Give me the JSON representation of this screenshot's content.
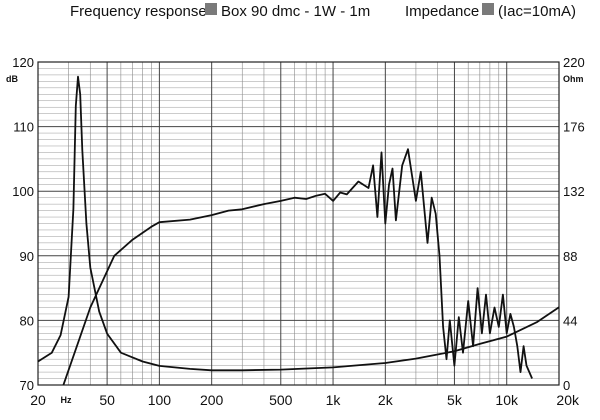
{
  "legend": {
    "fr_label": "Frequency response",
    "fr_series": "Box 90 dmc - 1W - 1m",
    "imp_label": "Impedance",
    "imp_series": "(Iac=10mA)",
    "swatch_color": "#7a7a7a"
  },
  "chart_data": {
    "type": "line",
    "x_scale": "log",
    "xlim": [
      20,
      20000
    ],
    "ylim": [
      70,
      120
    ],
    "y2lim": [
      0,
      220
    ],
    "grid": true,
    "x_ticks": [
      20,
      50,
      100,
      200,
      500,
      1000,
      2000,
      5000,
      10000,
      20000
    ],
    "x_tick_labels": [
      "20",
      "50",
      "100",
      "200",
      "500",
      "1k",
      "2k",
      "5k",
      "10k",
      "20k"
    ],
    "x_unit": "Hz",
    "y_ticks": [
      70,
      80,
      90,
      100,
      110,
      120
    ],
    "y_unit": "dB",
    "y2_ticks": [
      0,
      44,
      88,
      132,
      176,
      220
    ],
    "y2_unit": "Ohm",
    "series": [
      {
        "name": "Box 90 dmc - 1W - 1m",
        "axis": "left",
        "color": "#111111",
        "x": [
          28,
          40,
          55,
          70,
          90,
          100,
          150,
          200,
          250,
          300,
          400,
          500,
          600,
          700,
          800,
          900,
          1000,
          1100,
          1200,
          1400,
          1600,
          1700,
          1800,
          1900,
          2000,
          2100,
          2200,
          2300,
          2500,
          2700,
          3000,
          3200,
          3500,
          3700,
          3900,
          4100,
          4300,
          4500,
          4700,
          5000,
          5300,
          5600,
          6000,
          6400,
          6800,
          7200,
          7600,
          8000,
          8500,
          9000,
          9500,
          10000,
          10500,
          11000,
          11500,
          12000,
          12500,
          13000,
          14000
        ],
        "y": [
          70,
          82,
          90,
          92.5,
          94.5,
          95.2,
          95.6,
          96.3,
          97,
          97.2,
          98,
          98.5,
          99,
          98.8,
          99.3,
          99.6,
          98.5,
          99.8,
          99.5,
          101.5,
          100.5,
          104,
          96,
          106,
          95,
          101,
          103.5,
          95.5,
          104,
          106.5,
          98.5,
          103,
          92,
          99,
          96.5,
          90,
          79,
          74,
          80,
          73,
          80.5,
          75,
          83,
          76,
          85,
          78,
          84,
          78,
          82,
          79,
          84,
          78,
          81,
          79,
          76,
          72,
          76,
          73,
          71
        ]
      },
      {
        "name": "Impedance",
        "axis": "right",
        "color": "#111111",
        "x": [
          20,
          24,
          27,
          30,
          32,
          33,
          34,
          35,
          36,
          38,
          40,
          45,
          50,
          60,
          80,
          100,
          150,
          200,
          300,
          500,
          1000,
          2000,
          3000,
          5000,
          7000,
          10000,
          15000,
          20000
        ],
        "y": [
          16,
          22,
          34,
          60,
          120,
          190,
          210,
          198,
          160,
          110,
          80,
          50,
          35,
          22,
          16,
          13,
          11,
          10,
          10,
          10.5,
          12,
          15,
          18,
          23,
          28,
          33,
          43,
          53
        ]
      }
    ]
  }
}
